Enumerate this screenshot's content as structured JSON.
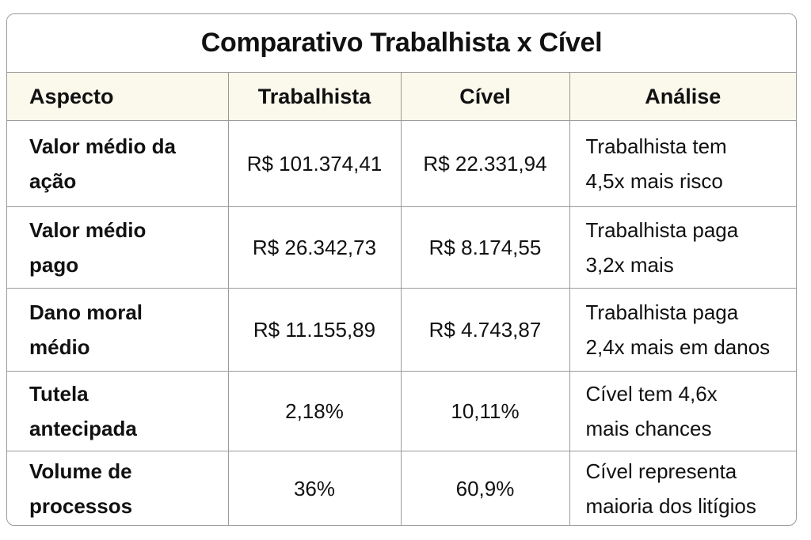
{
  "title": "Comparativo Trabalhista x Cível",
  "headers": {
    "aspect": "Aspecto",
    "trabalhista": "Trabalhista",
    "civel": "Cível",
    "analise": "Análise"
  },
  "rows": [
    {
      "aspect_line1": "Valor médio da",
      "aspect_line2": "ação",
      "trabalhista": "R$ 101.374,41",
      "civel": "R$ 22.331,94",
      "analysis_line1": "Trabalhista tem",
      "analysis_line2": "4,5x mais risco"
    },
    {
      "aspect_line1": "Valor médio",
      "aspect_line2": "pago",
      "trabalhista": "R$ 26.342,73",
      "civel": "R$ 8.174,55",
      "analysis_line1": "Trabalhista paga",
      "analysis_line2": "3,2x mais"
    },
    {
      "aspect_line1": "Dano moral",
      "aspect_line2": "médio",
      "trabalhista": "R$ 11.155,89",
      "civel": "R$ 4.743,87",
      "analysis_line1": "Trabalhista paga",
      "analysis_line2": "2,4x mais em danos"
    },
    {
      "aspect_line1": "Tutela",
      "aspect_line2": "antecipada",
      "trabalhista": "2,18%",
      "civel": "10,11%",
      "analysis_line1": "Cível tem 4,6x",
      "analysis_line2": "mais chances"
    },
    {
      "aspect_line1": "Volume de",
      "aspect_line2": "processos",
      "trabalhista": "36%",
      "civel": "60,9%",
      "analysis_line1": "Cível representa",
      "analysis_line2": "maioria dos litígios"
    }
  ],
  "colors": {
    "header_background": "#fbf8ec",
    "border": "#9a9a9a",
    "text": "#111111"
  }
}
